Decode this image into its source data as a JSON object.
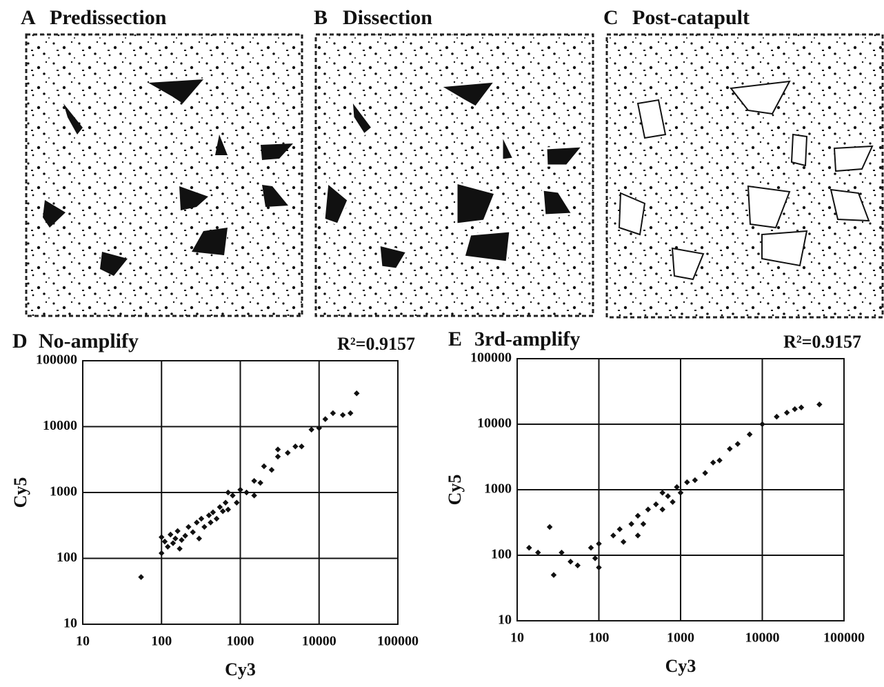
{
  "panels": [
    {
      "label": "A",
      "title": "Predissection"
    },
    {
      "label": "B",
      "title": "Dissection"
    },
    {
      "label": "C",
      "title": "Post-catapult"
    }
  ],
  "chart_data": [
    {
      "type": "scatter",
      "panel": "D",
      "title": "No-amplify",
      "annotation": "R²=0.9157",
      "x_label": "Cy3",
      "y_label": "Cy5",
      "xscale": "log",
      "yscale": "log",
      "grid": true,
      "color": "#111111",
      "xlim": [
        10,
        100000
      ],
      "ylim": [
        10,
        100000
      ],
      "xticks": [
        10,
        100,
        1000,
        10000,
        100000
      ],
      "yticks": [
        10,
        100,
        1000,
        10000,
        100000
      ],
      "x": [
        55,
        100,
        110,
        120,
        130,
        140,
        150,
        160,
        170,
        180,
        200,
        220,
        250,
        280,
        300,
        320,
        350,
        400,
        420,
        450,
        500,
        550,
        600,
        650,
        700,
        800,
        900,
        1000,
        1200,
        1500,
        1800,
        2000,
        2500,
        3000,
        4000,
        5000,
        6000,
        8000,
        10000,
        12000,
        15000,
        20000,
        25000,
        30000,
        1500,
        3000,
        100,
        700
      ],
      "values": [
        52,
        210,
        180,
        150,
        230,
        170,
        200,
        260,
        140,
        190,
        220,
        300,
        250,
        350,
        200,
        400,
        300,
        450,
        350,
        500,
        400,
        600,
        520,
        700,
        550,
        900,
        700,
        1100,
        1000,
        1500,
        1400,
        2500,
        2200,
        3500,
        4000,
        5000,
        5000,
        9000,
        9500,
        13000,
        16000,
        15000,
        16000,
        32000,
        900,
        4500,
        120,
        1000
      ]
    },
    {
      "type": "scatter",
      "panel": "E",
      "title": "3rd-amplify",
      "annotation": "R²=0.9157",
      "x_label": "Cy3",
      "y_label": "Cy5",
      "xscale": "log",
      "yscale": "log",
      "grid": true,
      "color": "#111111",
      "xlim": [
        10,
        100000
      ],
      "ylim": [
        10,
        100000
      ],
      "xticks": [
        10,
        100,
        1000,
        10000,
        100000
      ],
      "yticks": [
        10,
        100,
        1000,
        10000,
        100000
      ],
      "x": [
        14,
        18,
        25,
        28,
        35,
        45,
        55,
        80,
        90,
        100,
        100,
        150,
        180,
        200,
        250,
        300,
        350,
        400,
        500,
        600,
        700,
        800,
        900,
        1000,
        1200,
        1500,
        2000,
        2500,
        3000,
        4000,
        5000,
        7000,
        10000,
        15000,
        20000,
        25000,
        30000,
        50000,
        300,
        600
      ],
      "values": [
        130,
        110,
        270,
        50,
        110,
        80,
        70,
        130,
        90,
        65,
        150,
        200,
        250,
        160,
        300,
        400,
        300,
        500,
        600,
        500,
        800,
        650,
        1100,
        900,
        1300,
        1400,
        1800,
        2600,
        2800,
        4200,
        5000,
        7000,
        10000,
        13000,
        15000,
        17000,
        18000,
        20000,
        200,
        900
      ]
    }
  ]
}
